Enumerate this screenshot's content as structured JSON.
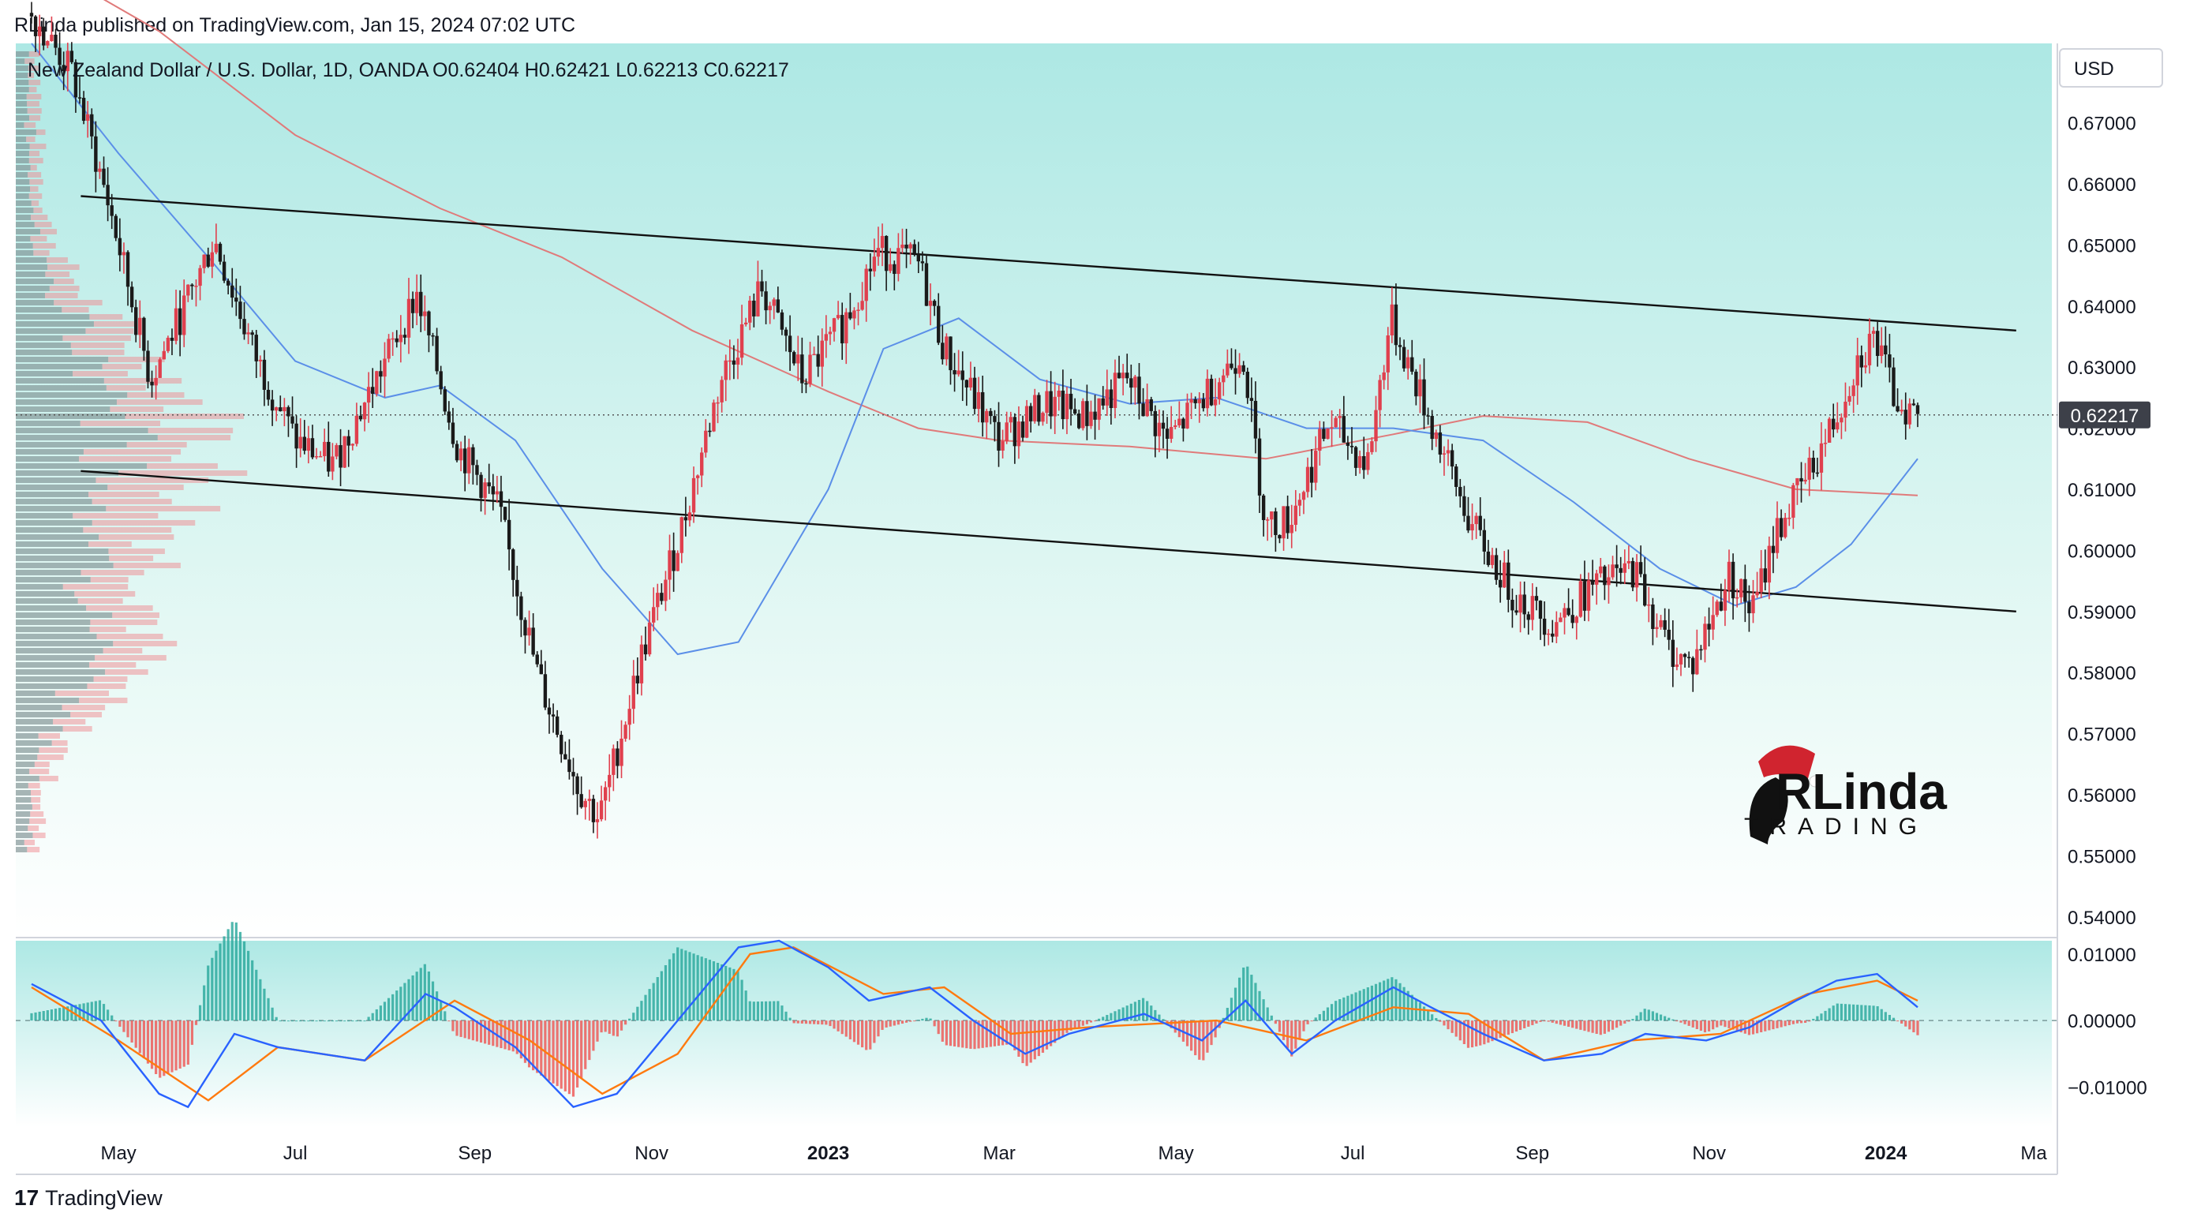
{
  "header": {
    "published": "RLinda published on TradingView.com, Jan 15, 2024 07:02 UTC"
  },
  "footer": {
    "logo_glyph": "17",
    "brand": "TradingView"
  },
  "currency_button": "USD",
  "watermark": {
    "line1": "RLinda",
    "line2": "TRADING"
  },
  "chart_data": [
    {
      "type": "candlestick",
      "title": "New Zealand Dollar / U.S. Dollar, 1D, OANDA",
      "ohlc_label": "O0.62404  H0.62421  L0.62213  C0.62217",
      "last_price_label": "0.62217",
      "last_price": 0.62217,
      "ylim": [
        0.537,
        0.683
      ],
      "y_ticks": [
        0.67,
        0.66,
        0.65,
        0.64,
        0.63,
        0.62,
        0.61,
        0.6,
        0.59,
        0.58,
        0.57,
        0.56,
        0.55,
        0.54
      ],
      "y_tick_labels": [
        "0.67000",
        "0.66000",
        "0.65000",
        "0.64000",
        "0.63000",
        "0.62000",
        "0.61000",
        "0.60000",
        "0.59000",
        "0.58000",
        "0.57000",
        "0.56000",
        "0.55000",
        "0.54000"
      ],
      "x_ticks": [
        "May",
        "Jul",
        "Sep",
        "Nov",
        "2023",
        "Mar",
        "May",
        "Jul",
        "Sep",
        "Nov",
        "2024",
        "Ma"
      ],
      "x_tick_bold": [
        false,
        false,
        false,
        false,
        true,
        false,
        false,
        false,
        false,
        false,
        true,
        false
      ],
      "close_path": [
        [
          "2022-04-01",
          0.688
        ],
        [
          "2022-04-15",
          0.678
        ],
        [
          "2022-04-28",
          0.656
        ],
        [
          "2022-05-12",
          0.628
        ],
        [
          "2022-05-25",
          0.641
        ],
        [
          "2022-06-03",
          0.651
        ],
        [
          "2022-06-17",
          0.632
        ],
        [
          "2022-07-01",
          0.618
        ],
        [
          "2022-07-14",
          0.614
        ],
        [
          "2022-07-29",
          0.628
        ],
        [
          "2022-08-12",
          0.642
        ],
        [
          "2022-08-26",
          0.617
        ],
        [
          "2022-09-09",
          0.607
        ],
        [
          "2022-09-23",
          0.579
        ],
        [
          "2022-10-07",
          0.561
        ],
        [
          "2022-10-14",
          0.556
        ],
        [
          "2022-10-28",
          0.582
        ],
        [
          "2022-11-11",
          0.603
        ],
        [
          "2022-11-25",
          0.628
        ],
        [
          "2022-12-09",
          0.643
        ],
        [
          "2022-12-23",
          0.628
        ],
        [
          "2023-01-06",
          0.637
        ],
        [
          "2023-01-18",
          0.649
        ],
        [
          "2023-02-01",
          0.647
        ],
        [
          "2023-02-10",
          0.633
        ],
        [
          "2023-03-01",
          0.618
        ],
        [
          "2023-03-17",
          0.624
        ],
        [
          "2023-03-31",
          0.622
        ],
        [
          "2023-04-14",
          0.628
        ],
        [
          "2023-04-28",
          0.618
        ],
        [
          "2023-05-12",
          0.626
        ],
        [
          "2023-05-24",
          0.633
        ],
        [
          "2023-06-01",
          0.604
        ],
        [
          "2023-06-09",
          0.605
        ],
        [
          "2023-06-23",
          0.621
        ],
        [
          "2023-07-06",
          0.614
        ],
        [
          "2023-07-14",
          0.638
        ],
        [
          "2023-07-28",
          0.621
        ],
        [
          "2023-08-11",
          0.604
        ],
        [
          "2023-08-25",
          0.593
        ],
        [
          "2023-09-08",
          0.588
        ],
        [
          "2023-09-22",
          0.594
        ],
        [
          "2023-10-06",
          0.597
        ],
        [
          "2023-10-18",
          0.584
        ],
        [
          "2023-10-26",
          0.581
        ],
        [
          "2023-11-08",
          0.596
        ],
        [
          "2023-11-16",
          0.59
        ],
        [
          "2023-11-24",
          0.603
        ],
        [
          "2023-12-06",
          0.613
        ],
        [
          "2023-12-15",
          0.622
        ],
        [
          "2023-12-22",
          0.631
        ],
        [
          "2023-12-28",
          0.635
        ],
        [
          "2024-01-04",
          0.625
        ],
        [
          "2024-01-12",
          0.622
        ]
      ],
      "ma_fast": [
        [
          "2022-04-01",
          0.683
        ],
        [
          "2022-05-01",
          0.665
        ],
        [
          "2022-06-01",
          0.648
        ],
        [
          "2022-07-01",
          0.631
        ],
        [
          "2022-08-01",
          0.625
        ],
        [
          "2022-08-20",
          0.627
        ],
        [
          "2022-09-15",
          0.618
        ],
        [
          "2022-10-15",
          0.597
        ],
        [
          "2022-11-10",
          0.583
        ],
        [
          "2022-12-01",
          0.585
        ],
        [
          "2023-01-01",
          0.61
        ],
        [
          "2023-01-20",
          0.633
        ],
        [
          "2023-02-15",
          0.638
        ],
        [
          "2023-03-15",
          0.628
        ],
        [
          "2023-04-15",
          0.624
        ],
        [
          "2023-05-15",
          0.625
        ],
        [
          "2023-06-15",
          0.62
        ],
        [
          "2023-07-15",
          0.62
        ],
        [
          "2023-08-15",
          0.618
        ],
        [
          "2023-09-15",
          0.608
        ],
        [
          "2023-10-15",
          0.597
        ],
        [
          "2023-11-10",
          0.591
        ],
        [
          "2023-12-01",
          0.594
        ],
        [
          "2023-12-20",
          0.601
        ],
        [
          "2024-01-12",
          0.615
        ]
      ],
      "ma_slow": [
        [
          "2022-04-01",
          0.697
        ],
        [
          "2022-05-15",
          0.685
        ],
        [
          "2022-07-01",
          0.668
        ],
        [
          "2022-08-20",
          0.656
        ],
        [
          "2022-10-01",
          0.648
        ],
        [
          "2022-11-15",
          0.636
        ],
        [
          "2023-01-01",
          0.626
        ],
        [
          "2023-02-01",
          0.62
        ],
        [
          "2023-03-01",
          0.618
        ],
        [
          "2023-04-15",
          0.617
        ],
        [
          "2023-06-01",
          0.615
        ],
        [
          "2023-07-15",
          0.619
        ],
        [
          "2023-08-15",
          0.622
        ],
        [
          "2023-09-20",
          0.621
        ],
        [
          "2023-10-25",
          0.615
        ],
        [
          "2023-12-01",
          0.61
        ],
        [
          "2024-01-12",
          0.609
        ]
      ],
      "trendlines": [
        {
          "name": "upper",
          "from": [
            "2022-04-18",
            0.658
          ],
          "to": [
            "2024-02-15",
            0.636
          ]
        },
        {
          "name": "lower",
          "from": [
            "2022-04-18",
            0.613
          ],
          "to": [
            "2024-02-15",
            0.59
          ]
        }
      ],
      "colors": {
        "up": "#e0404e",
        "down": "#1a1a1a",
        "ma_fast": "#5b8fe8",
        "ma_slow": "#e07a7a",
        "trendline": "#111111",
        "bg_top": "#b0eee8",
        "bg_bottom": "#ffffff"
      }
    },
    {
      "type": "macd",
      "ylim": [
        -0.016,
        0.012
      ],
      "y_ticks": [
        0.01,
        0.0,
        -0.01
      ],
      "y_tick_labels": [
        "0.01000",
        "0.00000",
        "−0.01000"
      ],
      "macd_line": [
        [
          "2022-04-01",
          0.0055
        ],
        [
          "2022-04-25",
          0.0
        ],
        [
          "2022-05-15",
          -0.011
        ],
        [
          "2022-05-25",
          -0.013
        ],
        [
          "2022-06-10",
          -0.002
        ],
        [
          "2022-06-25",
          -0.004
        ],
        [
          "2022-07-25",
          -0.006
        ],
        [
          "2022-08-15",
          0.004
        ],
        [
          "2022-08-25",
          0.002
        ],
        [
          "2022-09-15",
          -0.004
        ],
        [
          "2022-10-05",
          -0.013
        ],
        [
          "2022-10-20",
          -0.011
        ],
        [
          "2022-11-10",
          0.0
        ],
        [
          "2022-12-01",
          0.011
        ],
        [
          "2022-12-15",
          0.012
        ],
        [
          "2023-01-01",
          0.008
        ],
        [
          "2023-01-15",
          0.003
        ],
        [
          "2023-02-05",
          0.005
        ],
        [
          "2023-02-20",
          0.0
        ],
        [
          "2023-03-10",
          -0.005
        ],
        [
          "2023-03-25",
          -0.002
        ],
        [
          "2023-04-20",
          0.001
        ],
        [
          "2023-05-10",
          -0.003
        ],
        [
          "2023-05-25",
          0.003
        ],
        [
          "2023-06-10",
          -0.005
        ],
        [
          "2023-06-25",
          0.0
        ],
        [
          "2023-07-15",
          0.005
        ],
        [
          "2023-07-28",
          0.002
        ],
        [
          "2023-08-15",
          -0.002
        ],
        [
          "2023-09-05",
          -0.006
        ],
        [
          "2023-09-25",
          -0.005
        ],
        [
          "2023-10-10",
          -0.002
        ],
        [
          "2023-10-31",
          -0.003
        ],
        [
          "2023-11-15",
          -0.001
        ],
        [
          "2023-12-01",
          0.003
        ],
        [
          "2023-12-15",
          0.006
        ],
        [
          "2023-12-29",
          0.007
        ],
        [
          "2024-01-12",
          0.002
        ]
      ],
      "signal_line": [
        [
          "2022-04-01",
          0.005
        ],
        [
          "2022-05-01",
          -0.003
        ],
        [
          "2022-06-01",
          -0.012
        ],
        [
          "2022-06-25",
          -0.004
        ],
        [
          "2022-07-25",
          -0.006
        ],
        [
          "2022-08-25",
          0.003
        ],
        [
          "2022-09-20",
          -0.003
        ],
        [
          "2022-10-15",
          -0.011
        ],
        [
          "2022-11-10",
          -0.005
        ],
        [
          "2022-12-05",
          0.01
        ],
        [
          "2022-12-20",
          0.011
        ],
        [
          "2023-01-20",
          0.004
        ],
        [
          "2023-02-10",
          0.005
        ],
        [
          "2023-03-05",
          -0.002
        ],
        [
          "2023-04-01",
          -0.001
        ],
        [
          "2023-05-15",
          0.0
        ],
        [
          "2023-06-15",
          -0.003
        ],
        [
          "2023-07-15",
          0.002
        ],
        [
          "2023-08-10",
          0.001
        ],
        [
          "2023-09-05",
          -0.006
        ],
        [
          "2023-10-05",
          -0.003
        ],
        [
          "2023-11-05",
          -0.002
        ],
        [
          "2023-12-05",
          0.004
        ],
        [
          "2023-12-29",
          0.006
        ],
        [
          "2024-01-12",
          0.003
        ]
      ],
      "colors": {
        "macd": "#2962ff",
        "signal": "#ff7a0f",
        "hist_up": "#26a69a",
        "hist_down": "#ef5350",
        "bg_top": "#b0eee8",
        "bg_bottom": "#ffffff"
      }
    }
  ]
}
